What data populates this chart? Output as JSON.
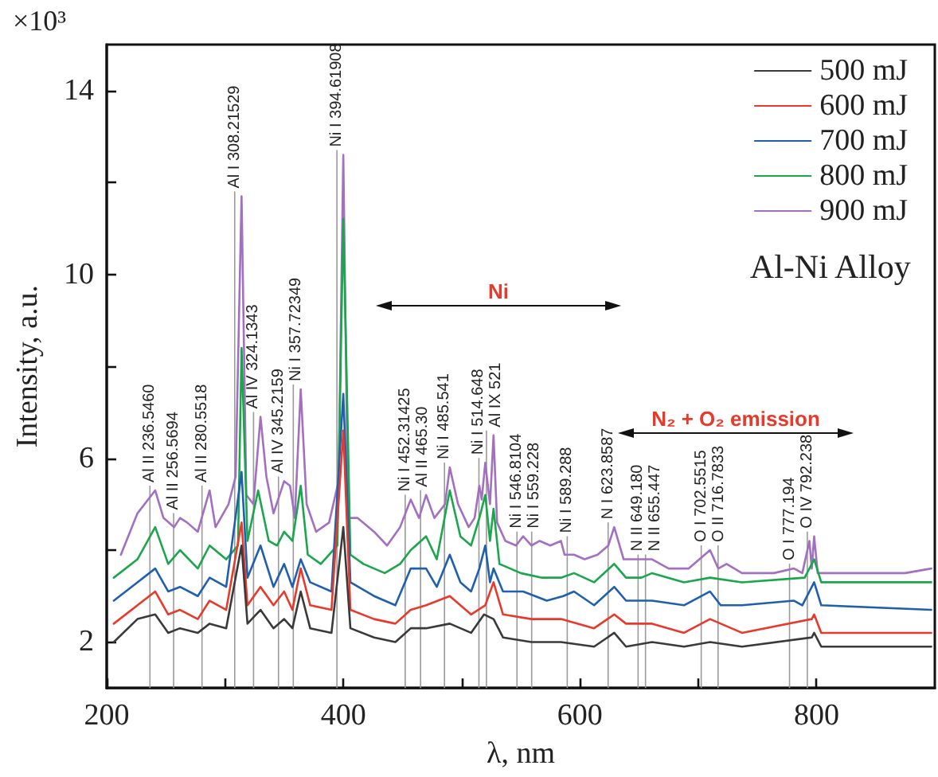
{
  "chart_data": {
    "type": "line",
    "xlabel": "λ, nm",
    "ylabel": "Intensity, a.u.",
    "xlim": [
      200,
      900
    ],
    "xticks": [
      200,
      {
        "value": 300,
        "label": null
      },
      400,
      {
        "value": 500,
        "label": null
      },
      600,
      {
        "value": 700,
        "label": null
      },
      800
    ],
    "ylim": [
      1,
      15
    ],
    "yticks": [
      2,
      {
        "value": 4,
        "label": null
      },
      6,
      {
        "value": 8,
        "label": null
      },
      10,
      {
        "value": 12,
        "label": null
      },
      14
    ],
    "legend": "top right",
    "marker": "none",
    "line_style": "solid",
    "series": [
      {
        "name": "500 mJ",
        "color": "#3a3a3a",
        "x": [
          206,
          226,
          241,
          252,
          262,
          277,
          287,
          301,
          314,
          319,
          330,
          341,
          350,
          357,
          364,
          372,
          390,
          400,
          406,
          426,
          444,
          457,
          470,
          490,
          508,
          519,
          527,
          535,
          559,
          584,
          612,
          629,
          639,
          661,
          688,
          710,
          737,
          796,
          798,
          804,
          897
        ],
        "values": [
          2.0,
          2.5,
          2.6,
          2.2,
          2.3,
          2.2,
          2.4,
          2.3,
          4.1,
          2.4,
          2.7,
          2.3,
          2.5,
          2.3,
          3.1,
          2.3,
          2.2,
          4.5,
          2.3,
          2.1,
          2.0,
          2.3,
          2.3,
          2.4,
          2.2,
          2.6,
          2.5,
          2.1,
          2.0,
          2.0,
          1.9,
          2.2,
          1.9,
          2.0,
          1.9,
          2.0,
          1.9,
          2.1,
          2.2,
          1.9,
          1.9
        ]
      },
      {
        "name": "600 mJ",
        "color": "#e8392b",
        "x": [
          206,
          226,
          241,
          252,
          262,
          277,
          287,
          301,
          314,
          319,
          330,
          341,
          350,
          357,
          364,
          372,
          390,
          400,
          406,
          426,
          444,
          457,
          470,
          490,
          508,
          520,
          527,
          535,
          559,
          584,
          612,
          629,
          639,
          661,
          688,
          710,
          737,
          796,
          798,
          804,
          897
        ],
        "values": [
          2.4,
          2.8,
          3.1,
          2.6,
          2.7,
          2.5,
          2.9,
          2.7,
          4.6,
          2.8,
          3.2,
          2.8,
          3.1,
          2.7,
          3.6,
          2.8,
          2.7,
          6.6,
          2.7,
          2.5,
          2.4,
          2.7,
          2.8,
          3.0,
          2.6,
          2.8,
          3.3,
          2.6,
          2.5,
          2.5,
          2.3,
          2.6,
          2.4,
          2.4,
          2.2,
          2.5,
          2.2,
          2.5,
          2.6,
          2.2,
          2.2
        ]
      },
      {
        "name": "700 mJ",
        "color": "#1f5fae",
        "x": [
          206,
          226,
          241,
          252,
          262,
          277,
          287,
          301,
          314,
          319,
          330,
          341,
          350,
          357,
          364,
          372,
          390,
          400,
          406,
          426,
          444,
          457,
          470,
          479,
          490,
          499,
          508,
          515,
          520,
          524,
          527,
          535,
          552,
          572,
          586,
          595,
          612,
          629,
          639,
          661,
          688,
          710,
          719,
          737,
          781,
          788,
          796,
          798,
          804,
          897
        ],
        "values": [
          2.9,
          3.3,
          3.6,
          3.1,
          3.2,
          3.0,
          3.4,
          3.2,
          5.7,
          3.4,
          4.1,
          3.2,
          3.7,
          3.2,
          3.8,
          3.3,
          3.1,
          7.4,
          3.3,
          3.0,
          2.8,
          3.6,
          3.6,
          3.2,
          3.9,
          3.3,
          3.1,
          3.6,
          4.1,
          3.3,
          3.6,
          3.1,
          3.1,
          2.9,
          3.0,
          3.1,
          2.8,
          3.2,
          2.9,
          2.9,
          2.8,
          3.1,
          2.8,
          2.8,
          2.9,
          2.8,
          3.2,
          3.3,
          2.8,
          2.7
        ]
      },
      {
        "name": "800 mJ",
        "color": "#1aa64a",
        "x": [
          206,
          226,
          241,
          252,
          262,
          277,
          287,
          301,
          311,
          314,
          319,
          328,
          337,
          344,
          350,
          357,
          364,
          370,
          381,
          395,
          400,
          406,
          417,
          435,
          448,
          457,
          470,
          479,
          490,
          499,
          508,
          515,
          520,
          524,
          527,
          532,
          550,
          568,
          584,
          595,
          612,
          629,
          639,
          652,
          661,
          688,
          710,
          737,
          790,
          796,
          798,
          804,
          897
        ],
        "values": [
          3.4,
          3.8,
          4.5,
          3.7,
          4.0,
          3.6,
          4.1,
          3.8,
          4.1,
          8.4,
          4.2,
          5.3,
          4.2,
          4.1,
          4.4,
          4.2,
          5.4,
          3.9,
          3.7,
          4.1,
          11.2,
          3.9,
          3.7,
          3.5,
          3.7,
          4.0,
          4.3,
          3.8,
          5.3,
          4.3,
          4.1,
          4.7,
          5.2,
          4.2,
          4.9,
          3.7,
          3.5,
          3.4,
          3.4,
          3.5,
          3.3,
          3.7,
          3.4,
          3.4,
          3.5,
          3.3,
          3.4,
          3.3,
          3.4,
          3.7,
          3.8,
          3.3,
          3.3
        ]
      },
      {
        "name": "900 mJ",
        "color": "#a36fc0",
        "x": [
          212,
          226,
          235,
          241,
          248,
          257,
          262,
          268,
          277,
          287,
          292,
          303,
          309,
          314,
          318,
          324,
          330,
          335,
          341,
          350,
          355,
          359,
          364,
          369,
          377,
          388,
          396,
          400,
          404,
          412,
          426,
          437,
          448,
          457,
          464,
          470,
          477,
          486,
          490,
          497,
          506,
          511,
          515,
          517,
          520,
          524,
          527,
          530,
          537,
          546,
          552,
          559,
          566,
          575,
          584,
          587,
          595,
          604,
          615,
          624,
          629,
          637,
          655,
          661,
          675,
          692,
          710,
          717,
          724,
          737,
          764,
          781,
          788,
          794,
          796,
          798,
          801,
          815,
          844,
          875,
          897
        ],
        "values": [
          3.9,
          4.8,
          5.1,
          5.3,
          4.7,
          4.5,
          4.7,
          4.6,
          4.4,
          5.3,
          4.5,
          5.0,
          5.6,
          11.7,
          5.2,
          5.0,
          6.9,
          5.6,
          4.8,
          5.5,
          5.4,
          4.7,
          7.5,
          5.0,
          4.4,
          4.6,
          5.5,
          12.6,
          4.7,
          4.7,
          4.4,
          4.1,
          4.5,
          5.1,
          4.7,
          5.2,
          4.7,
          5.0,
          5.8,
          5.0,
          4.5,
          4.7,
          5.4,
          5.1,
          5.9,
          5.0,
          6.5,
          4.6,
          4.2,
          4.1,
          4.3,
          4.1,
          4.2,
          4.1,
          4.2,
          3.9,
          3.9,
          3.8,
          3.9,
          4.1,
          4.5,
          3.8,
          3.8,
          3.8,
          3.6,
          3.6,
          4.0,
          3.6,
          3.7,
          3.5,
          3.5,
          3.6,
          3.5,
          4.2,
          3.6,
          4.3,
          3.5,
          3.5,
          3.5,
          3.5,
          3.6
        ]
      }
    ],
    "ref_lines": [
      {
        "axis": "x",
        "value": 236.546,
        "label": "Al II 236.5460"
      },
      {
        "axis": "x",
        "value": 256.5694,
        "label": "Al II 256.5694"
      },
      {
        "axis": "x",
        "value": 280.5518,
        "label": "Al II 280.5518"
      },
      {
        "axis": "x",
        "value": 308.21529,
        "label": "Al I 308.21529"
      },
      {
        "axis": "x",
        "value": 324.1343,
        "label": "Al IV 324.1343"
      },
      {
        "axis": "x",
        "value": 345.2159,
        "label": "Al IV 345.2159"
      },
      {
        "axis": "x",
        "value": 357.72349,
        "label": "Ni I 357.72349"
      },
      {
        "axis": "x",
        "value": 394.61908,
        "label": "Ni I 394.61908"
      },
      {
        "axis": "x",
        "value": 452.31425,
        "label": "Ni I 452.31425"
      },
      {
        "axis": "x",
        "value": 465.3,
        "label": "Al II 465.30"
      },
      {
        "axis": "x",
        "value": 485.541,
        "label": "Ni I 485.541"
      },
      {
        "axis": "x",
        "value": 514.648,
        "label": "Ni I 514.648"
      },
      {
        "axis": "x",
        "value": 521,
        "label": "Al IX 521"
      },
      {
        "axis": "x",
        "value": 546.8104,
        "label": "Ni I 546.8104"
      },
      {
        "axis": "x",
        "value": 559.228,
        "label": "Ni I 559.228"
      },
      {
        "axis": "x",
        "value": 589.288,
        "label": "Ni I 589.288"
      },
      {
        "axis": "x",
        "value": 623.8587,
        "label": "N I 623.8587"
      },
      {
        "axis": "x",
        "value": 649.18,
        "label": "N II 649.180"
      },
      {
        "axis": "x",
        "value": 655.447,
        "label": "N II 655.447"
      },
      {
        "axis": "x",
        "value": 702.5515,
        "label": "O I 702.5515"
      },
      {
        "axis": "x",
        "value": 716.7833,
        "label": "O II 716.7833"
      },
      {
        "axis": "x",
        "value": 777.194,
        "label": "O I 777.194"
      },
      {
        "axis": "x",
        "value": 792.238,
        "label": "O IV 792.238"
      }
    ],
    "annotations": [
      "×10³",
      "Al-Ni Alloy",
      "Ni",
      "N₂ + O₂ emission"
    ]
  }
}
